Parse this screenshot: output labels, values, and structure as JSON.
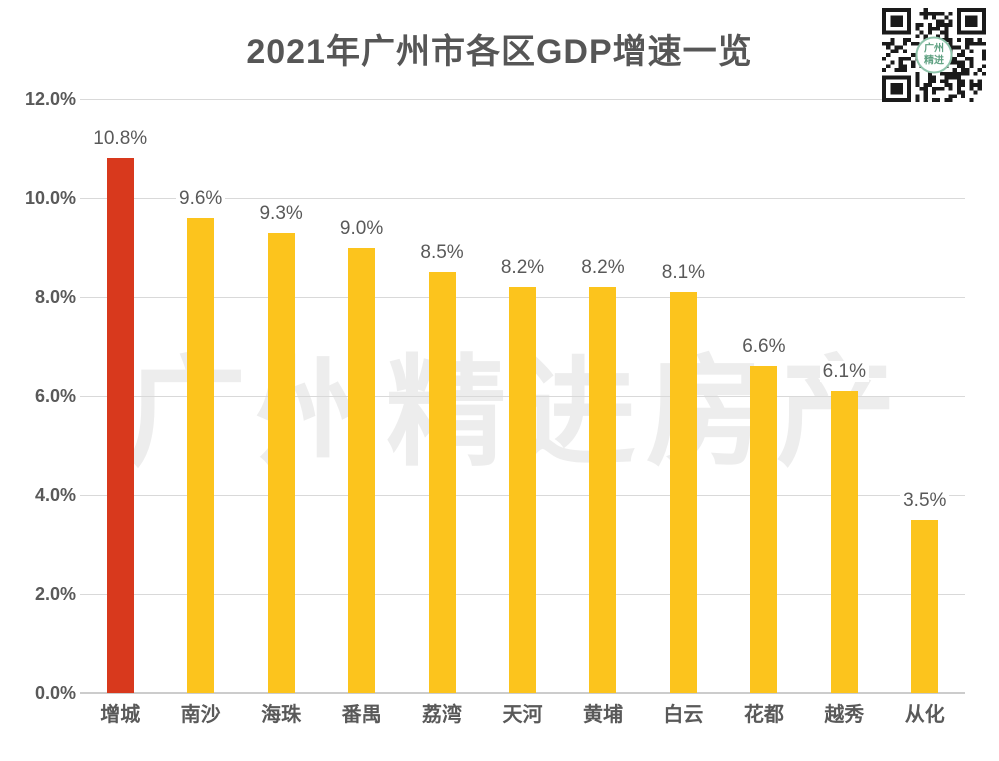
{
  "chart_data": {
    "type": "bar",
    "title": "2021年广州市各区GDP增速一览",
    "categories": [
      "增城",
      "南沙",
      "海珠",
      "番禺",
      "荔湾",
      "天河",
      "黄埔",
      "白云",
      "花都",
      "越秀",
      "从化"
    ],
    "values": [
      10.8,
      9.6,
      9.3,
      9.0,
      8.5,
      8.2,
      8.2,
      8.1,
      6.6,
      6.1,
      3.5
    ],
    "value_labels": [
      "10.8%",
      "9.6%",
      "9.3%",
      "9.0%",
      "8.5%",
      "8.2%",
      "8.2%",
      "8.1%",
      "6.6%",
      "6.1%",
      "3.5%"
    ],
    "bar_colors": [
      "#d8391d",
      "#fcc41d",
      "#fcc41d",
      "#fcc41d",
      "#fcc41d",
      "#fcc41d",
      "#fcc41d",
      "#fcc41d",
      "#fcc41d",
      "#fcc41d",
      "#fcc41d"
    ],
    "xlabel": "",
    "ylabel": "",
    "ylim": [
      0,
      12
    ],
    "yticks": [
      0,
      2,
      4,
      6,
      8,
      10,
      12
    ],
    "ytick_labels": [
      "0.0%",
      "2.0%",
      "4.0%",
      "6.0%",
      "8.0%",
      "10.0%",
      "12.0%"
    ],
    "grid": true,
    "legend": "none",
    "colors": {
      "highlight_bar": "#d8391d",
      "default_bar": "#fcc41d",
      "axis_text": "#595959",
      "title_text": "#565656",
      "gridline": "#d9d9d9",
      "watermark": "#ededed"
    }
  },
  "watermark": {
    "text": "广州精进房产"
  },
  "qr": {
    "badge_line1": "广州",
    "badge_line2": "精进",
    "badge_color": "#5fa182"
  }
}
